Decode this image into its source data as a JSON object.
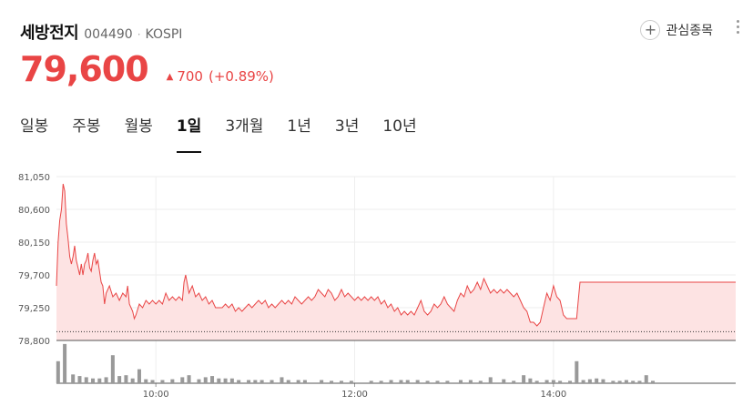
{
  "stock": {
    "name": "세방전지",
    "code": "004490",
    "separator": "·",
    "market": "KOSPI"
  },
  "actions": {
    "watch_label": "관심종목",
    "watch_icon": "plus-circle-icon",
    "more_icon": "more-vertical-icon"
  },
  "quote": {
    "price": "79,600",
    "change_arrow": "▲",
    "change": "700",
    "change_pct": "(+0.89%)",
    "color": "#e94545"
  },
  "tabs": [
    {
      "label": "일봉",
      "active": false
    },
    {
      "label": "주봉",
      "active": false
    },
    {
      "label": "월봉",
      "active": false
    },
    {
      "label": "1일",
      "active": true
    },
    {
      "label": "3개월",
      "active": false
    },
    {
      "label": "1년",
      "active": false
    },
    {
      "label": "3년",
      "active": false
    },
    {
      "label": "10년",
      "active": false
    }
  ],
  "chart_data": {
    "type": "area",
    "line_color": "#e94545",
    "fill_color": "#fde3e3",
    "grid": true,
    "ylim": [
      78800,
      81050
    ],
    "y_ticks": [
      "81,050",
      "80,600",
      "80,150",
      "79,700",
      "79,250",
      "78,800"
    ],
    "y_tick_values": [
      81050,
      80600,
      80150,
      79700,
      79250,
      78800
    ],
    "x_ticks": [
      "10:00",
      "12:00",
      "14:00"
    ],
    "x_tick_minutes": [
      600,
      720,
      840
    ],
    "xlim": [
      540,
      950
    ],
    "baseline": 78920,
    "price_points": [
      [
        540,
        79550
      ],
      [
        541,
        80150
      ],
      [
        542,
        80450
      ],
      [
        543,
        80600
      ],
      [
        544,
        80950
      ],
      [
        545,
        80850
      ],
      [
        546,
        80400
      ],
      [
        547,
        80200
      ],
      [
        548,
        79950
      ],
      [
        549,
        79850
      ],
      [
        550,
        79950
      ],
      [
        551,
        80100
      ],
      [
        552,
        79900
      ],
      [
        553,
        79800
      ],
      [
        554,
        79700
      ],
      [
        555,
        79850
      ],
      [
        556,
        79700
      ],
      [
        557,
        79850
      ],
      [
        558,
        79900
      ],
      [
        559,
        80000
      ],
      [
        560,
        79800
      ],
      [
        561,
        79750
      ],
      [
        562,
        79900
      ],
      [
        563,
        80000
      ],
      [
        564,
        79850
      ],
      [
        565,
        79900
      ],
      [
        566,
        79750
      ],
      [
        567,
        79600
      ],
      [
        568,
        79550
      ],
      [
        569,
        79300
      ],
      [
        570,
        79450
      ],
      [
        572,
        79550
      ],
      [
        574,
        79400
      ],
      [
        576,
        79450
      ],
      [
        578,
        79350
      ],
      [
        580,
        79450
      ],
      [
        582,
        79400
      ],
      [
        583,
        79550
      ],
      [
        584,
        79300
      ],
      [
        586,
        79200
      ],
      [
        587,
        79100
      ],
      [
        588,
        79150
      ],
      [
        590,
        79300
      ],
      [
        592,
        79250
      ],
      [
        594,
        79350
      ],
      [
        596,
        79300
      ],
      [
        598,
        79350
      ],
      [
        600,
        79300
      ],
      [
        602,
        79350
      ],
      [
        604,
        79300
      ],
      [
        606,
        79450
      ],
      [
        608,
        79350
      ],
      [
        610,
        79400
      ],
      [
        612,
        79350
      ],
      [
        614,
        79400
      ],
      [
        616,
        79350
      ],
      [
        617,
        79600
      ],
      [
        618,
        79700
      ],
      [
        620,
        79450
      ],
      [
        622,
        79550
      ],
      [
        624,
        79400
      ],
      [
        626,
        79450
      ],
      [
        628,
        79350
      ],
      [
        630,
        79400
      ],
      [
        632,
        79300
      ],
      [
        634,
        79350
      ],
      [
        636,
        79250
      ],
      [
        640,
        79250
      ],
      [
        642,
        79300
      ],
      [
        644,
        79250
      ],
      [
        646,
        79300
      ],
      [
        648,
        79200
      ],
      [
        650,
        79250
      ],
      [
        652,
        79200
      ],
      [
        654,
        79250
      ],
      [
        656,
        79300
      ],
      [
        658,
        79250
      ],
      [
        660,
        79300
      ],
      [
        662,
        79350
      ],
      [
        664,
        79300
      ],
      [
        666,
        79350
      ],
      [
        668,
        79250
      ],
      [
        670,
        79300
      ],
      [
        672,
        79250
      ],
      [
        674,
        79300
      ],
      [
        676,
        79350
      ],
      [
        678,
        79300
      ],
      [
        680,
        79350
      ],
      [
        682,
        79300
      ],
      [
        684,
        79400
      ],
      [
        686,
        79350
      ],
      [
        688,
        79300
      ],
      [
        690,
        79350
      ],
      [
        692,
        79400
      ],
      [
        694,
        79350
      ],
      [
        696,
        79400
      ],
      [
        698,
        79500
      ],
      [
        700,
        79450
      ],
      [
        702,
        79400
      ],
      [
        704,
        79500
      ],
      [
        706,
        79450
      ],
      [
        708,
        79350
      ],
      [
        710,
        79400
      ],
      [
        712,
        79500
      ],
      [
        714,
        79400
      ],
      [
        716,
        79450
      ],
      [
        718,
        79400
      ],
      [
        720,
        79350
      ],
      [
        722,
        79400
      ],
      [
        724,
        79350
      ],
      [
        726,
        79400
      ],
      [
        728,
        79350
      ],
      [
        730,
        79400
      ],
      [
        732,
        79350
      ],
      [
        734,
        79400
      ],
      [
        736,
        79300
      ],
      [
        738,
        79350
      ],
      [
        740,
        79250
      ],
      [
        742,
        79300
      ],
      [
        744,
        79200
      ],
      [
        746,
        79250
      ],
      [
        748,
        79150
      ],
      [
        750,
        79200
      ],
      [
        752,
        79150
      ],
      [
        754,
        79200
      ],
      [
        756,
        79150
      ],
      [
        758,
        79250
      ],
      [
        760,
        79350
      ],
      [
        762,
        79200
      ],
      [
        764,
        79150
      ],
      [
        766,
        79200
      ],
      [
        768,
        79300
      ],
      [
        770,
        79250
      ],
      [
        772,
        79300
      ],
      [
        774,
        79400
      ],
      [
        776,
        79300
      ],
      [
        778,
        79250
      ],
      [
        780,
        79200
      ],
      [
        782,
        79350
      ],
      [
        784,
        79450
      ],
      [
        786,
        79400
      ],
      [
        788,
        79550
      ],
      [
        790,
        79450
      ],
      [
        792,
        79500
      ],
      [
        794,
        79600
      ],
      [
        796,
        79500
      ],
      [
        798,
        79650
      ],
      [
        800,
        79550
      ],
      [
        802,
        79450
      ],
      [
        804,
        79500
      ],
      [
        806,
        79450
      ],
      [
        808,
        79500
      ],
      [
        810,
        79450
      ],
      [
        812,
        79500
      ],
      [
        814,
        79450
      ],
      [
        816,
        79400
      ],
      [
        818,
        79450
      ],
      [
        820,
        79350
      ],
      [
        822,
        79250
      ],
      [
        824,
        79200
      ],
      [
        826,
        79050
      ],
      [
        828,
        79050
      ],
      [
        830,
        79000
      ],
      [
        832,
        79050
      ],
      [
        834,
        79250
      ],
      [
        836,
        79450
      ],
      [
        838,
        79350
      ],
      [
        840,
        79550
      ],
      [
        842,
        79400
      ],
      [
        844,
        79350
      ],
      [
        846,
        79150
      ],
      [
        848,
        79100
      ],
      [
        850,
        79100
      ],
      [
        852,
        79100
      ],
      [
        854,
        79100
      ],
      [
        855,
        79350
      ],
      [
        856,
        79600
      ],
      [
        858,
        79600
      ],
      [
        860,
        79600
      ],
      [
        862,
        79600
      ],
      [
        864,
        79600
      ],
      [
        866,
        79600
      ],
      [
        868,
        79600
      ],
      [
        870,
        79600
      ],
      [
        872,
        79600
      ],
      [
        874,
        79600
      ],
      [
        876,
        79600
      ],
      [
        878,
        79600
      ],
      [
        880,
        79600
      ],
      [
        882,
        79600
      ],
      [
        884,
        79600
      ],
      [
        886,
        79600
      ],
      [
        888,
        79600
      ],
      [
        890,
        79600
      ],
      [
        892,
        79600
      ],
      [
        894,
        79600
      ],
      [
        896,
        79600
      ],
      [
        898,
        79600
      ],
      [
        900,
        79600
      ],
      [
        902,
        79600
      ],
      [
        904,
        79600
      ],
      [
        906,
        79600
      ],
      [
        908,
        79600
      ],
      [
        910,
        79600
      ],
      [
        912,
        79600
      ],
      [
        914,
        79600
      ],
      [
        916,
        79600
      ],
      [
        918,
        79600
      ],
      [
        920,
        79600
      ],
      [
        922,
        79600
      ],
      [
        924,
        79600
      ],
      [
        926,
        79600
      ],
      [
        928,
        79600
      ],
      [
        930,
        79600
      ],
      [
        932,
        79600
      ],
      [
        934,
        79600
      ],
      [
        936,
        79600
      ],
      [
        938,
        79600
      ],
      [
        940,
        79600
      ],
      [
        942,
        79600
      ],
      [
        944,
        79600
      ],
      [
        946,
        79600
      ],
      [
        948,
        79600
      ],
      [
        950,
        79600
      ]
    ],
    "volume_bars": [
      [
        541,
        0.55
      ],
      [
        545,
        0.98
      ],
      [
        550,
        0.22
      ],
      [
        554,
        0.18
      ],
      [
        558,
        0.15
      ],
      [
        562,
        0.12
      ],
      [
        566,
        0.12
      ],
      [
        570,
        0.15
      ],
      [
        574,
        0.7
      ],
      [
        578,
        0.18
      ],
      [
        582,
        0.2
      ],
      [
        586,
        0.12
      ],
      [
        590,
        0.35
      ],
      [
        594,
        0.1
      ],
      [
        598,
        0.08
      ],
      [
        604,
        0.08
      ],
      [
        610,
        0.1
      ],
      [
        616,
        0.15
      ],
      [
        620,
        0.2
      ],
      [
        626,
        0.1
      ],
      [
        630,
        0.15
      ],
      [
        634,
        0.18
      ],
      [
        638,
        0.12
      ],
      [
        642,
        0.12
      ],
      [
        646,
        0.12
      ],
      [
        650,
        0.08
      ],
      [
        656,
        0.08
      ],
      [
        660,
        0.08
      ],
      [
        664,
        0.08
      ],
      [
        670,
        0.08
      ],
      [
        676,
        0.15
      ],
      [
        680,
        0.08
      ],
      [
        686,
        0.08
      ],
      [
        690,
        0.08
      ],
      [
        700,
        0.08
      ],
      [
        706,
        0.06
      ],
      [
        712,
        0.06
      ],
      [
        718,
        0.06
      ],
      [
        730,
        0.06
      ],
      [
        736,
        0.06
      ],
      [
        742,
        0.08
      ],
      [
        748,
        0.08
      ],
      [
        752,
        0.08
      ],
      [
        758,
        0.08
      ],
      [
        764,
        0.06
      ],
      [
        770,
        0.06
      ],
      [
        776,
        0.06
      ],
      [
        784,
        0.08
      ],
      [
        790,
        0.08
      ],
      [
        796,
        0.06
      ],
      [
        802,
        0.15
      ],
      [
        810,
        0.1
      ],
      [
        816,
        0.06
      ],
      [
        822,
        0.2
      ],
      [
        826,
        0.12
      ],
      [
        830,
        0.06
      ],
      [
        836,
        0.08
      ],
      [
        840,
        0.08
      ],
      [
        844,
        0.06
      ],
      [
        850,
        0.06
      ],
      [
        854,
        0.55
      ],
      [
        858,
        0.08
      ],
      [
        862,
        0.1
      ],
      [
        866,
        0.12
      ],
      [
        870,
        0.1
      ],
      [
        876,
        0.06
      ],
      [
        880,
        0.06
      ],
      [
        884,
        0.08
      ],
      [
        888,
        0.06
      ],
      [
        892,
        0.06
      ],
      [
        896,
        0.2
      ],
      [
        900,
        0.06
      ]
    ]
  }
}
